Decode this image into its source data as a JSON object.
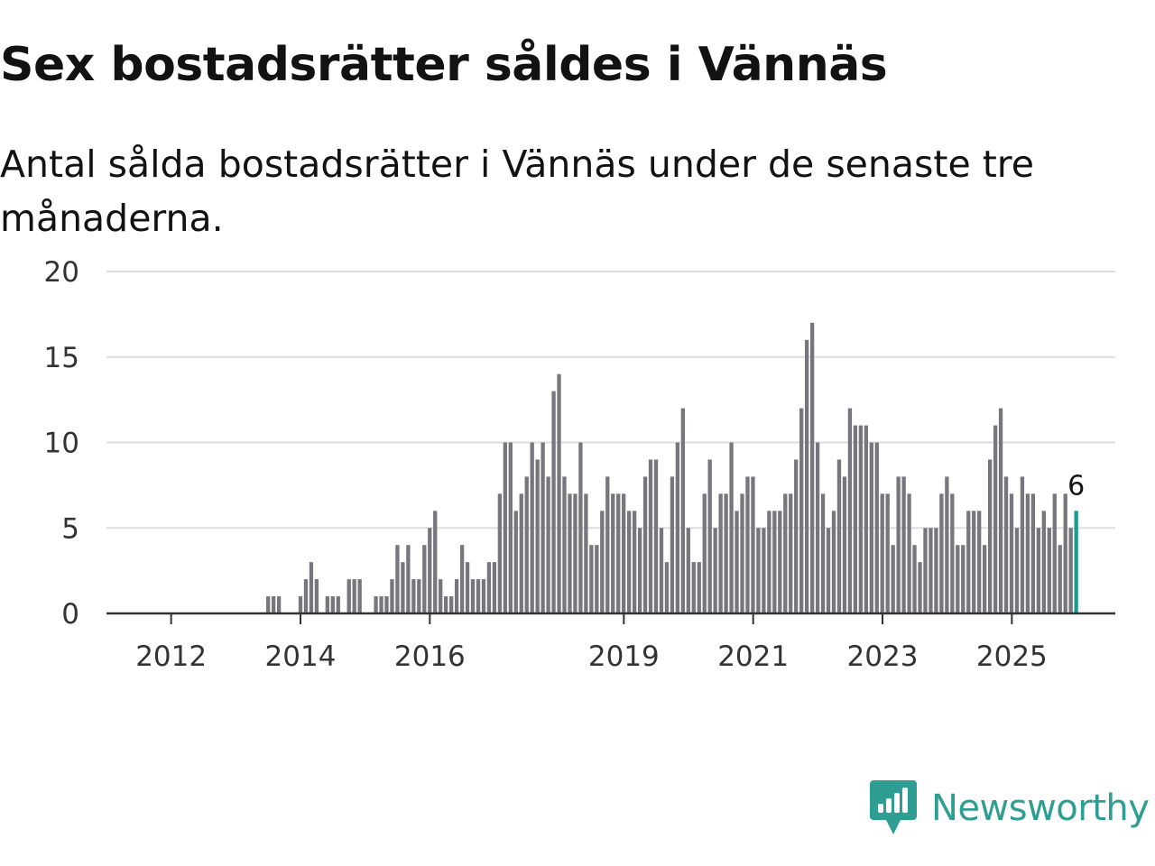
{
  "title": "Sex bostadsrätter såldes i Vännäs",
  "subtitle": "Antal sålda bostadsrätter i Vännäs under de senaste tre månaderna.",
  "brand": {
    "name": "Newsworthy",
    "logo_icon": "newsworthy-logo-icon"
  },
  "colors": {
    "bar": "#77767c",
    "highlight": "#1a9b91",
    "grid": "#dddddd",
    "axis": "#333333",
    "text": "#333333",
    "brand": "#2e9e93"
  },
  "chart_data": {
    "type": "bar",
    "title": "Sex bostadsrätter såldes i Vännäs",
    "subtitle": "Antal sålda bostadsrätter i Vännäs under de senaste tre månaderna.",
    "xlabel": "",
    "ylabel": "",
    "x_start": 2011,
    "x_end": 2026.6,
    "ylim": [
      0,
      20
    ],
    "yticks": [
      0,
      5,
      10,
      15,
      20
    ],
    "xticks": [
      {
        "value": 2012,
        "label": "2012"
      },
      {
        "value": 2014,
        "label": "2014"
      },
      {
        "value": 2016,
        "label": "2016"
      },
      {
        "value": 2019,
        "label": "2019"
      },
      {
        "value": 2021,
        "label": "2021"
      },
      {
        "value": 2023,
        "label": "2023"
      },
      {
        "value": 2025,
        "label": "2025"
      }
    ],
    "grid": true,
    "series": [
      {
        "name": "Antal sålda bostadsrätter",
        "start_year": 2013.5,
        "step": 0.0833,
        "values": [
          1,
          1,
          1,
          0,
          0,
          0,
          1,
          2,
          3,
          2,
          0,
          1,
          1,
          1,
          0,
          2,
          2,
          2,
          0,
          0,
          1,
          1,
          1,
          2,
          4,
          3,
          4,
          2,
          2,
          4,
          5,
          6,
          2,
          1,
          1,
          2,
          4,
          3,
          2,
          2,
          2,
          3,
          3,
          7,
          10,
          10,
          6,
          7,
          8,
          10,
          9,
          10,
          8,
          13,
          14,
          8,
          7,
          7,
          10,
          7,
          4,
          4,
          6,
          8,
          7,
          7,
          7,
          6,
          6,
          5,
          8,
          9,
          9,
          5,
          3,
          8,
          10,
          12,
          5,
          3,
          3,
          7,
          9,
          5,
          7,
          7,
          10,
          6,
          7,
          8,
          8,
          5,
          5,
          6,
          6,
          6,
          7,
          7,
          9,
          12,
          16,
          17,
          10,
          7,
          5,
          6,
          9,
          8,
          12,
          11,
          11,
          11,
          10,
          10,
          7,
          7,
          4,
          8,
          8,
          7,
          4,
          3,
          5,
          5,
          5,
          7,
          8,
          7,
          4,
          4,
          6,
          6,
          6,
          4,
          9,
          11,
          12,
          8,
          7,
          5,
          8,
          7,
          7,
          5,
          6,
          5,
          7,
          4,
          7,
          5,
          6
        ]
      }
    ],
    "highlight": {
      "index": "last",
      "value": 6,
      "label": "6"
    }
  }
}
